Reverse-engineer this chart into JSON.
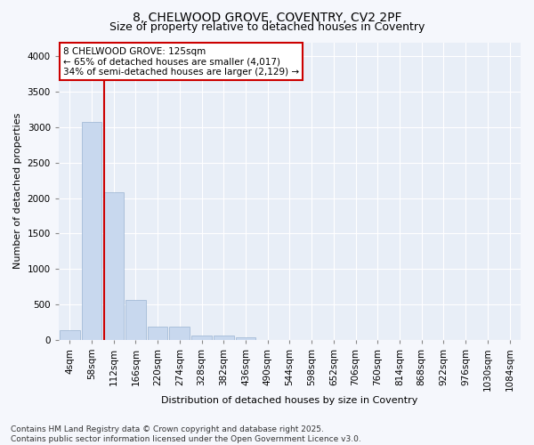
{
  "title_line1": "8, CHELWOOD GROVE, COVENTRY, CV2 2PF",
  "title_line2": "Size of property relative to detached houses in Coventry",
  "xlabel": "Distribution of detached houses by size in Coventry",
  "ylabel": "Number of detached properties",
  "bar_color": "#c8d8ee",
  "bar_edgecolor": "#9ab4d2",
  "vline_color": "#cc0000",
  "vline_x_index": 2,
  "annotation_text": "8 CHELWOOD GROVE: 125sqm\n← 65% of detached houses are smaller (4,017)\n34% of semi-detached houses are larger (2,129) →",
  "annotation_box_facecolor": "#ffffff",
  "annotation_box_edgecolor": "#cc0000",
  "categories": [
    "4sqm",
    "58sqm",
    "112sqm",
    "166sqm",
    "220sqm",
    "274sqm",
    "328sqm",
    "382sqm",
    "436sqm",
    "490sqm",
    "544sqm",
    "598sqm",
    "652sqm",
    "706sqm",
    "760sqm",
    "814sqm",
    "868sqm",
    "922sqm",
    "976sqm",
    "1030sqm",
    "1084sqm"
  ],
  "values": [
    130,
    3080,
    2080,
    560,
    190,
    185,
    60,
    55,
    40,
    0,
    0,
    0,
    0,
    0,
    0,
    0,
    0,
    0,
    0,
    0,
    0
  ],
  "ylim": [
    0,
    4200
  ],
  "yticks": [
    0,
    500,
    1000,
    1500,
    2000,
    2500,
    3000,
    3500,
    4000
  ],
  "footer_text": "Contains HM Land Registry data © Crown copyright and database right 2025.\nContains public sector information licensed under the Open Government Licence v3.0.",
  "plot_bg_color": "#e8eef7",
  "fig_bg_color": "#f5f7fc",
  "grid_color": "#ffffff",
  "title_fontsize": 10,
  "subtitle_fontsize": 9,
  "axis_label_fontsize": 8,
  "tick_fontsize": 7.5,
  "footer_fontsize": 6.5
}
